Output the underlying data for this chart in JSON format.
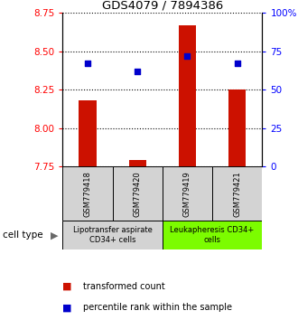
{
  "title": "GDS4079 / 7894386",
  "samples": [
    "GSM779418",
    "GSM779420",
    "GSM779419",
    "GSM779421"
  ],
  "red_values": [
    8.18,
    7.79,
    8.67,
    8.25
  ],
  "blue_values": [
    67,
    62,
    72,
    67
  ],
  "ylim_left": [
    7.75,
    8.75
  ],
  "yticks_left": [
    7.75,
    8.0,
    8.25,
    8.5,
    8.75
  ],
  "yticks_right": [
    0,
    25,
    50,
    75,
    100
  ],
  "ylim_right": [
    0,
    100
  ],
  "group1_label": "Lipotransfer aspirate\nCD34+ cells",
  "group2_label": "Leukapheresis CD34+\ncells",
  "group1_indices": [
    0,
    1
  ],
  "group2_indices": [
    2,
    3
  ],
  "group1_color": "#d3d3d3",
  "group2_color": "#7CFC00",
  "bar_color": "#cc1100",
  "dot_color": "#0000cc",
  "legend_red": "transformed count",
  "legend_blue": "percentile rank within the sample",
  "bar_width": 0.35,
  "cell_type_label": "cell type"
}
